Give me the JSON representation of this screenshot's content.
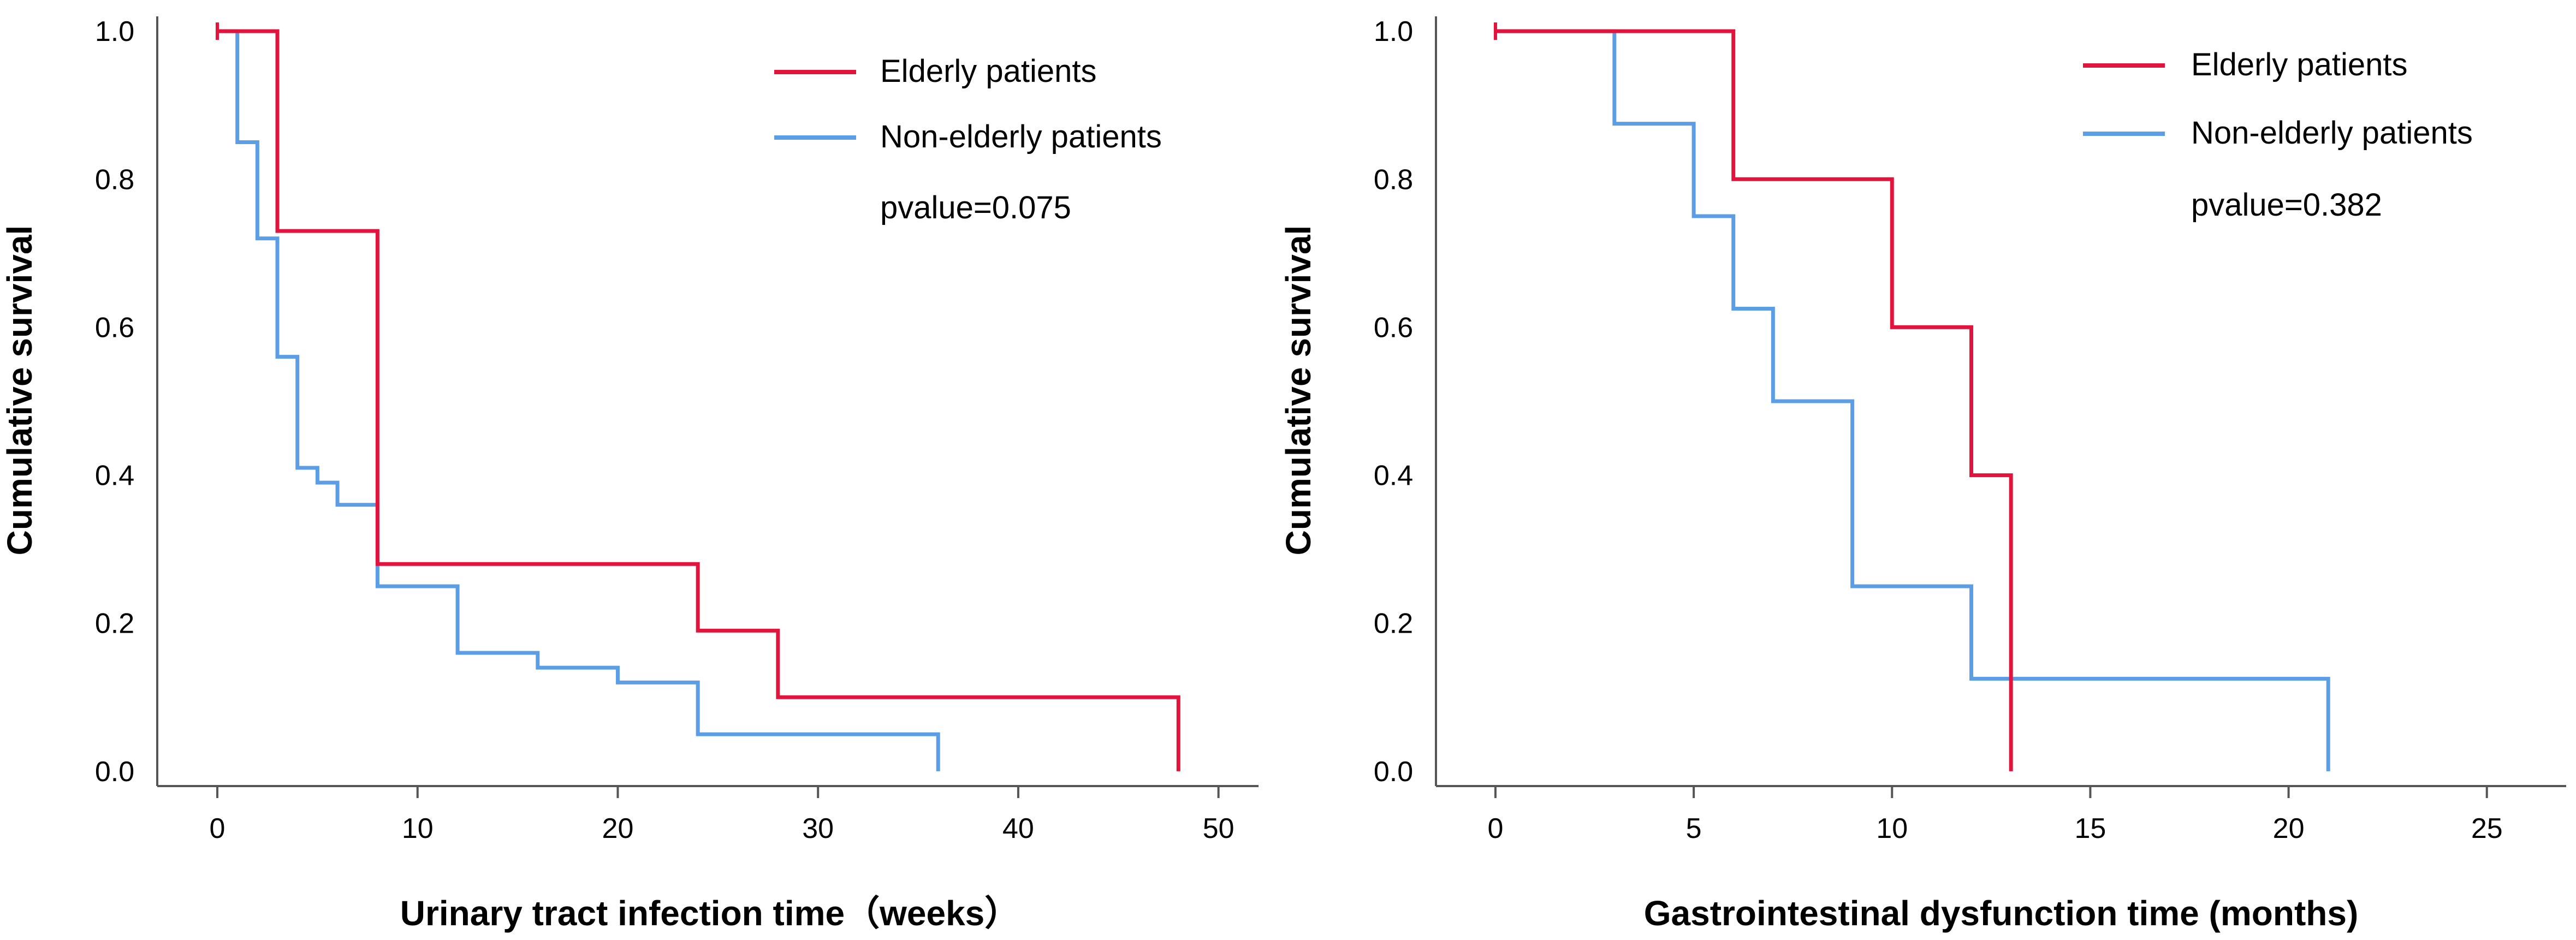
{
  "chart_data": [
    {
      "type": "line",
      "subtype": "kaplan-meier-step",
      "title": "",
      "xlabel": "Urinary tract infection time（weeks）",
      "ylabel": "Cumulative survival",
      "xlim": [
        -3,
        52
      ],
      "ylim": [
        -0.02,
        1.02
      ],
      "xticks": [
        0,
        10,
        20,
        30,
        40,
        50
      ],
      "yticks": [
        "0.0",
        "0.2",
        "0.4",
        "0.6",
        "0.8",
        "1.0"
      ],
      "annotation": "pvalue=0.075",
      "legend_position": "top-right",
      "series": [
        {
          "name": "Elderly patients",
          "color": "#e0143c",
          "censor": [
            [
              0,
              1.0
            ]
          ],
          "steps": [
            [
              0,
              1.0
            ],
            [
              3,
              0.73
            ],
            [
              8,
              0.28
            ],
            [
              24,
              0.19
            ],
            [
              28,
              0.1
            ],
            [
              48,
              0.0
            ]
          ]
        },
        {
          "name": "Non-elderly patients",
          "color": "#5b9ee6",
          "censor": [],
          "steps": [
            [
              0,
              1.0
            ],
            [
              1,
              0.85
            ],
            [
              2,
              0.72
            ],
            [
              3,
              0.56
            ],
            [
              4,
              0.41
            ],
            [
              5,
              0.39
            ],
            [
              6,
              0.36
            ],
            [
              8,
              0.25
            ],
            [
              12,
              0.16
            ],
            [
              16,
              0.14
            ],
            [
              20,
              0.12
            ],
            [
              24,
              0.05
            ],
            [
              36,
              0.0
            ]
          ]
        }
      ]
    },
    {
      "type": "line",
      "subtype": "kaplan-meier-step",
      "title": "",
      "xlabel": "Gastrointestinal dysfunction time (months)",
      "ylabel": "Cumulative survival",
      "xlim": [
        -1.5,
        27
      ],
      "ylim": [
        -0.02,
        1.02
      ],
      "xticks": [
        0,
        5,
        10,
        15,
        20,
        25
      ],
      "yticks": [
        "0.0",
        "0.2",
        "0.4",
        "0.6",
        "0.8",
        "1.0"
      ],
      "annotation": "pvalue=0.382",
      "legend_position": "top-right",
      "series": [
        {
          "name": "Elderly patients",
          "color": "#e0143c",
          "censor": [
            [
              0,
              1.0
            ]
          ],
          "steps": [
            [
              0,
              1.0
            ],
            [
              6,
              0.8
            ],
            [
              10,
              0.6
            ],
            [
              12,
              0.4
            ],
            [
              13,
              0.0
            ]
          ]
        },
        {
          "name": "Non-elderly patients",
          "color": "#5b9ee6",
          "censor": [],
          "steps": [
            [
              0,
              1.0
            ],
            [
              3,
              0.875
            ],
            [
              5,
              0.75
            ],
            [
              6,
              0.625
            ],
            [
              7,
              0.5
            ],
            [
              9,
              0.25
            ],
            [
              12,
              0.125
            ],
            [
              21,
              0.0
            ]
          ]
        }
      ]
    }
  ]
}
